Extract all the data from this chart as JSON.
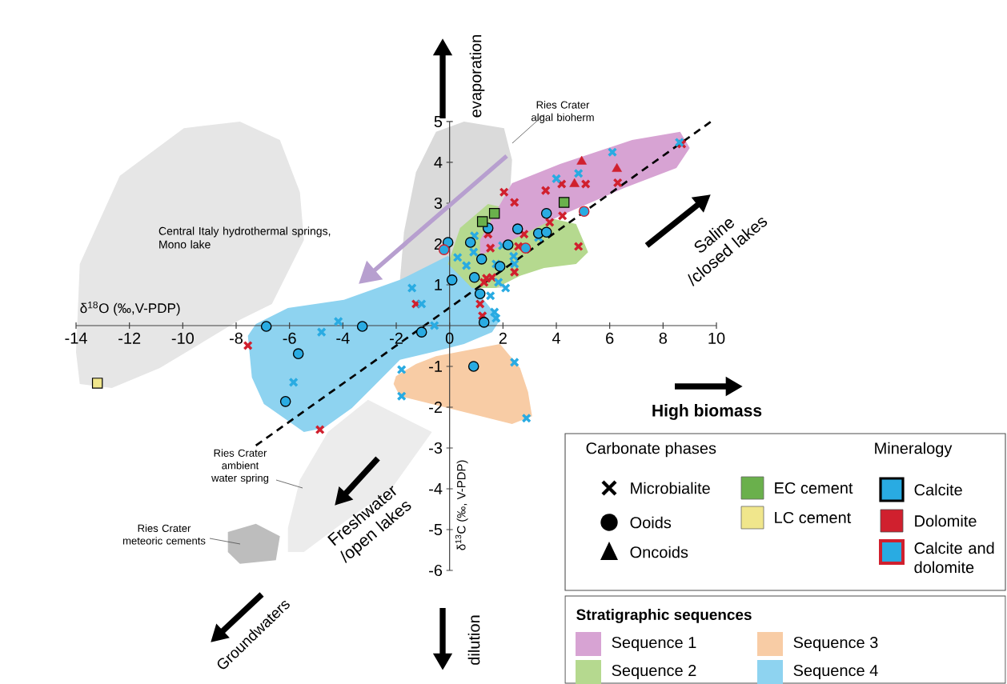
{
  "chart_data": {
    "type": "scatter",
    "xlabel": "δ$^{18}$O (‰,V-PDP)",
    "ylabel": "δ$^{13}$C (‰, V-PDP)",
    "xlim": [
      -14,
      10
    ],
    "ylim": [
      -6,
      5
    ],
    "xticks": [
      -14,
      -12,
      -10,
      -8,
      -6,
      -4,
      -2,
      0,
      2,
      4,
      6,
      8,
      10
    ],
    "yticks": [
      -6,
      -5,
      -4,
      -3,
      -2,
      -1,
      1,
      2,
      3,
      4,
      5
    ],
    "legend": "bottom right",
    "series": [
      {
        "type": "area",
        "color": "#e6e6e6",
        "x": [
          -14.0,
          -13.86,
          -12.36,
          -9.96,
          -7.86,
          -6.36,
          -5.61,
          -5.46,
          -6.66,
          -7.86,
          -9.36,
          -10.86,
          -12.66,
          -13.86
        ],
        "values": [
          -0.65,
          1.51,
          3.67,
          4.84,
          5.0,
          4.55,
          3.27,
          2.1,
          0.53,
          0.14,
          -0.45,
          -1.04,
          -1.53,
          -1.43
        ]
      },
      {
        "type": "area",
        "color": "#ececec",
        "x": [
          -6.06,
          -5.61,
          -4.56,
          -3.06,
          null,
          null,
          -0.66,
          -2.16,
          -4.26,
          -5.46,
          -6.06
        ],
        "values": [
          -4.96,
          -3.78,
          -2.61,
          -1.82,
          null,
          null,
          -2.61,
          -3.98,
          -4.96,
          -5.55,
          -5.55
        ]
      },
      {
        "type": "area",
        "color": "#dadada",
        "x": [
          -1.86,
          -1.71,
          -1.26,
          -0.51,
          0.54,
          2.04,
          2.34,
          null,
          2.04,
          0.84,
          null
        ],
        "values": [
          1.12,
          2.29,
          3.76,
          4.75,
          5.0,
          4.84,
          4.06,
          null,
          0.92,
          0.92,
          null
        ]
      },
      {
        "type": "area",
        "color": "#bdbdbd",
        "x": [
          -8.31,
          -7.26,
          -6.36,
          -6.51,
          -7.86,
          -8.31
        ],
        "values": [
          -5.06,
          -4.86,
          -5.16,
          -5.75,
          -5.84,
          -5.55
        ]
      },
      {
        "type": "area",
        "name": "Sequence 4",
        "color": "#8ed3f0",
        "x": [
          -7.56,
          -7.26,
          -6.06,
          -3.96,
          -1.86,
          -0.06,
          null,
          null,
          1.89,
          1.59,
          0.54,
          -0.66,
          -1.86,
          -2.76,
          -3.66,
          -4.71,
          -5.46,
          -6.96,
          -7.41
        ],
        "values": [
          -0.25,
          0.04,
          0.43,
          0.63,
          1.12,
          1.71,
          null,
          null,
          0.14,
          -0.16,
          -0.45,
          -0.65,
          -0.84,
          -1.43,
          -2.02,
          -2.51,
          -2.61,
          -1.92,
          -1.27
        ]
      },
      {
        "type": "area",
        "name": "Sequence 3",
        "color": "#f8cca5",
        "x": [
          -2.01,
          -1.26,
          -0.51,
          1.89,
          2.64,
          2.94,
          3.09,
          2.34,
          -0.06,
          -1.86,
          -2.1
        ],
        "values": [
          -1.24,
          -0.94,
          -0.75,
          -0.45,
          -1.04,
          -1.63,
          -2.22,
          -2.41,
          -2.02,
          -1.73,
          -1.43
        ]
      },
      {
        "type": "area",
        "name": "Sequence 2",
        "color": "#b5d98f",
        "x": [
          -0.06,
          0.39,
          1.44,
          null,
          null,
          4.74,
          5.19,
          4.74,
          3.54,
          2.64,
          1.74,
          0.84
        ],
        "values": [
          1.51,
          2.39,
          2.98,
          null,
          null,
          2.49,
          1.8,
          1.51,
          1.41,
          1.22,
          0.92,
          0.92
        ]
      },
      {
        "type": "area",
        "name": "Sequence 1",
        "color": "#d7a3d3",
        "x": [
          1.14,
          2.34,
          4.14,
          6.84,
          8.64,
          9.0,
          8.5,
          6.54,
          4.14,
          2.34,
          1.14
        ],
        "values": [
          2.1,
          3.49,
          3.96,
          4.55,
          4.75,
          4.35,
          3.86,
          3.37,
          2.69,
          2.1,
          1.71
        ]
      },
      {
        "type": "line",
        "color": "#000000",
        "line_style": "dashed",
        "x": [
          -7.26,
          9.8
        ],
        "values": [
          -2.94,
          5.0
        ]
      },
      {
        "type": "scatter",
        "marker": "cross",
        "color": "#d0202e",
        "x": [
          8.7,
          2.04,
          2.43,
          3.6,
          4.2,
          5.1,
          6.3,
          4.23,
          3.75,
          4.83,
          2.79,
          2.58,
          1.44,
          1.53,
          2.43,
          1.38,
          1.59,
          1.29,
          1.14,
          1.23,
          -1.26,
          -7.56,
          -4.86
        ],
        "values": [
          4.45,
          3.27,
          3.02,
          3.31,
          3.47,
          3.47,
          3.5,
          2.69,
          2.53,
          1.94,
          2.24,
          1.94,
          2.24,
          1.9,
          1.31,
          1.16,
          1.18,
          1.06,
          0.53,
          0.24,
          0.53,
          -0.49,
          -2.55
        ]
      },
      {
        "type": "scatter",
        "marker": "cross",
        "color": "#29abe2",
        "x": [
          8.61,
          6.1,
          4.0,
          4.83,
          0.93,
          0.3,
          0.63,
          0.9,
          1.74,
          1.98,
          2.4,
          2.43,
          1.83,
          2.1,
          1.53,
          1.68,
          1.74,
          -1.41,
          -1.05,
          -0.57,
          3.33,
          -4.17,
          -4.8,
          -1.8,
          -1.8,
          -5.85,
          2.43,
          2.88
        ],
        "values": [
          4.49,
          4.25,
          3.6,
          3.73,
          2.2,
          1.67,
          1.47,
          1.8,
          1.51,
          1.96,
          1.7,
          1.51,
          1.06,
          0.92,
          0.73,
          0.33,
          0.18,
          0.92,
          0.53,
          0.0,
          2.16,
          0.1,
          -0.16,
          -1.08,
          -1.73,
          -1.39,
          -0.9,
          -2.27
        ]
      },
      {
        "type": "scatter",
        "marker": "circle",
        "color": "#29abe2",
        "x": [
          3.63,
          1.44,
          2.55,
          3.33,
          3.63,
          2.19,
          -0.06,
          0.78,
          1.2,
          0.93,
          0.09,
          1.14,
          1.29,
          1.89,
          -6.87,
          -3.27,
          -1.05,
          -5.67,
          -6.15,
          0.9
        ],
        "values": [
          2.75,
          2.39,
          2.37,
          2.26,
          2.29,
          1.98,
          2.04,
          2.04,
          1.63,
          1.18,
          1.12,
          0.78,
          0.08,
          1.45,
          -0.02,
          -0.02,
          -0.16,
          -0.69,
          -1.86,
          -1.0
        ]
      },
      {
        "type": "scatter",
        "marker": "circle",
        "color": "#29abe2",
        "x": [
          -0.21,
          2.85,
          5.04
        ],
        "values": [
          1.86,
          1.9,
          2.8
        ]
      },
      {
        "type": "scatter",
        "marker": "triangle",
        "color": "#d0202e",
        "x": [
          4.95,
          4.68,
          6.27
        ],
        "values": [
          4.02,
          3.47,
          3.84
        ]
      },
      {
        "type": "scatter",
        "marker": "square",
        "color": "#6ab04c",
        "x": [
          1.23,
          1.68,
          4.29
        ],
        "values": [
          2.55,
          2.75,
          3.02
        ]
      },
      {
        "type": "scatter",
        "marker": "square",
        "color": "#f0e68c",
        "x": [
          -13.2
        ],
        "values": [
          -1.41
        ]
      }
    ],
    "annotations": [
      "evaporation",
      "dilution",
      "High biomass",
      "Saline /closed lakes",
      "Freshwater /open lakes",
      "Groundwaters",
      "Carbonate phases",
      "Microbialite",
      "Ooids",
      "Oncoids",
      "EC cement",
      "LC cement",
      "Mineralogy",
      "Calcite",
      "Dolomite",
      "Calcite and dolomite",
      "Stratigraphic sequences",
      "Central Italy hydrothermal springs, Mono lake",
      "Ries Crater algal bioherm",
      "Ries Crater ambient water spring",
      "Ries Crater meteoric cements"
    ]
  }
}
